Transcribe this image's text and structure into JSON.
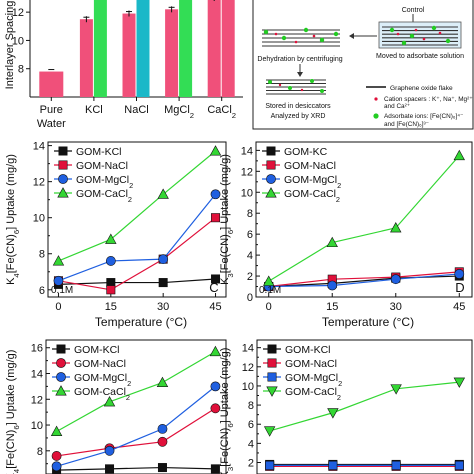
{
  "figure": {
    "panel_a": {
      "ylabel": "Interlayer Spacing",
      "ytick_labels": [
        "8",
        "10",
        "12"
      ],
      "category_labels": [
        "Pure Water",
        "KCl",
        "NaCl",
        "MgCl2",
        "CaCl2"
      ]
    },
    "panel_b": {
      "labels": {
        "control": "Control",
        "dehydration": "Dehydration by centrifuging",
        "moved": "Moved to adsorbate solution",
        "stored": "Stored in desiccators",
        "analyzed": "Analyzed by XRD",
        "legend_flake": "Graphene oxide flake",
        "legend_cation": "Cation spacers : K⁺, Na⁺, Mg²⁺",
        "legend_cation2": "and Ca²⁺",
        "legend_ion": "Adsorbate ions: [Fe(CN)₆]⁴⁻",
        "legend_ion2": "and [Fe(CN)₆]³⁻"
      }
    },
    "panel_c": {
      "ylabel": "K4[Fe(CN)6] Uptake (mg/g)",
      "xlabel": "Temperature (°C)",
      "panel_letter": "C",
      "conc_label": "0.1M",
      "legend": [
        "GOM-KCl",
        "GOM-NaCl",
        "GOM-MgCl2",
        "GOM-CaCl2"
      ]
    },
    "panel_d": {
      "ylabel": "K3[Fe(CN)6] Uptake (mg/g)",
      "xlabel": "Temperature (°C)",
      "panel_letter": "D",
      "conc_label": "0.1M",
      "legend": [
        "GOM-KC",
        "GOM-NaCl",
        "GOM-MgCl2",
        "GOM-CaCl2"
      ]
    },
    "panel_e": {
      "ylabel": "K4[Fe(CN)6] Uptake (mg/g)",
      "legend": [
        "GOM-KCl",
        "GOM-NaCl",
        "GOM-MgCl2",
        "GOM-CaCl2"
      ]
    },
    "panel_f": {
      "ylabel": "K3[Fe(CN)6] Uptake (mg/g)",
      "legend": [
        "GOM-KCl",
        "GOM-NaCl",
        "GOM-MgCl2",
        "GOM-CaCl2"
      ]
    }
  },
  "colors": {
    "KCl": "#111111",
    "NaCl": "#e0103a",
    "MgCl2": "#1f5fe0",
    "CaCl2": "#33d633",
    "bar_pure": "#f0507a",
    "bar_kcl": "#33dd55",
    "bar_nacl": "#1ab8c8",
    "bar_mgcl2": "#33dd55",
    "bar_cacl2": "#f0507a"
  },
  "chart_data": [
    {
      "type": "bar",
      "title": "",
      "ylabel": "Interlayer Spacing",
      "categories": [
        "Pure Water",
        "KCl",
        "NaCl",
        "MgCl2",
        "CaCl2"
      ],
      "ylim": [
        6,
        13
      ],
      "series": [
        {
          "values": [
            7.8,
            11.5,
            11.9,
            12.2,
            13.0
          ]
        },
        {
          "values": [
            null,
            13.0,
            13.0,
            13.0,
            13.0
          ]
        }
      ]
    },
    {
      "type": "line",
      "xlabel": "Temperature (°C)",
      "ylabel": "K4[Fe(CN)6] Uptake (mg/g)",
      "x": [
        0,
        15,
        30,
        45
      ],
      "xlim": [
        -3,
        48
      ],
      "ylim": [
        5.6,
        14.2
      ],
      "series": [
        {
          "name": "GOM-KCl",
          "values": [
            6.3,
            6.4,
            6.4,
            6.6
          ]
        },
        {
          "name": "GOM-NaCl",
          "values": [
            6.5,
            6.0,
            7.7,
            10.0
          ]
        },
        {
          "name": "GOM-MgCl2",
          "values": [
            6.5,
            7.6,
            7.7,
            11.3
          ]
        },
        {
          "name": "GOM-CaCl2",
          "values": [
            7.6,
            8.8,
            11.3,
            13.7
          ]
        }
      ]
    },
    {
      "type": "line",
      "xlabel": "Temperature (°C)",
      "ylabel": "K3[Fe(CN)6] Uptake (mg/g)",
      "x": [
        0,
        15,
        30,
        45
      ],
      "xlim": [
        -3,
        48
      ],
      "ylim": [
        0,
        14.8
      ],
      "series": [
        {
          "name": "GOM-KC",
          "values": [
            1.0,
            1.3,
            1.8,
            2.0
          ]
        },
        {
          "name": "GOM-NaCl",
          "values": [
            1.0,
            1.7,
            1.9,
            2.4
          ]
        },
        {
          "name": "GOM-MgCl2",
          "values": [
            1.0,
            1.1,
            1.7,
            2.2
          ]
        },
        {
          "name": "GOM-CaCl2",
          "values": [
            1.5,
            5.2,
            6.6,
            13.5
          ]
        }
      ]
    },
    {
      "type": "line",
      "ylabel": "K4[Fe(CN)6] Uptake (mg/g)",
      "x": [
        0,
        15,
        30,
        45
      ],
      "xlim": [
        -3,
        48
      ],
      "ylim": [
        6.2,
        16.6
      ],
      "series": [
        {
          "name": "GOM-KCl",
          "values": [
            6.5,
            6.6,
            6.7,
            6.6
          ]
        },
        {
          "name": "GOM-NaCl",
          "values": [
            7.6,
            8.2,
            8.7,
            11.3
          ]
        },
        {
          "name": "GOM-MgCl2",
          "values": [
            6.8,
            8.0,
            9.7,
            13.0
          ]
        },
        {
          "name": "GOM-CaCl2",
          "values": [
            9.5,
            11.8,
            13.3,
            15.7
          ]
        }
      ]
    },
    {
      "type": "line",
      "ylabel": "K3[Fe(CN)6] Uptake (mg/g)",
      "x": [
        0,
        15,
        30,
        45
      ],
      "xlim": [
        -3,
        48
      ],
      "ylim": [
        0.8,
        14.8
      ],
      "series": [
        {
          "name": "GOM-KCl",
          "values": [
            1.8,
            1.8,
            1.8,
            1.8
          ]
        },
        {
          "name": "GOM-NaCl",
          "values": [
            1.6,
            1.6,
            1.6,
            1.6
          ]
        },
        {
          "name": "GOM-MgCl2",
          "values": [
            1.7,
            1.7,
            1.7,
            1.7
          ]
        },
        {
          "name": "GOM-CaCl2",
          "values": [
            5.3,
            7.2,
            9.7,
            10.4
          ]
        }
      ]
    }
  ]
}
